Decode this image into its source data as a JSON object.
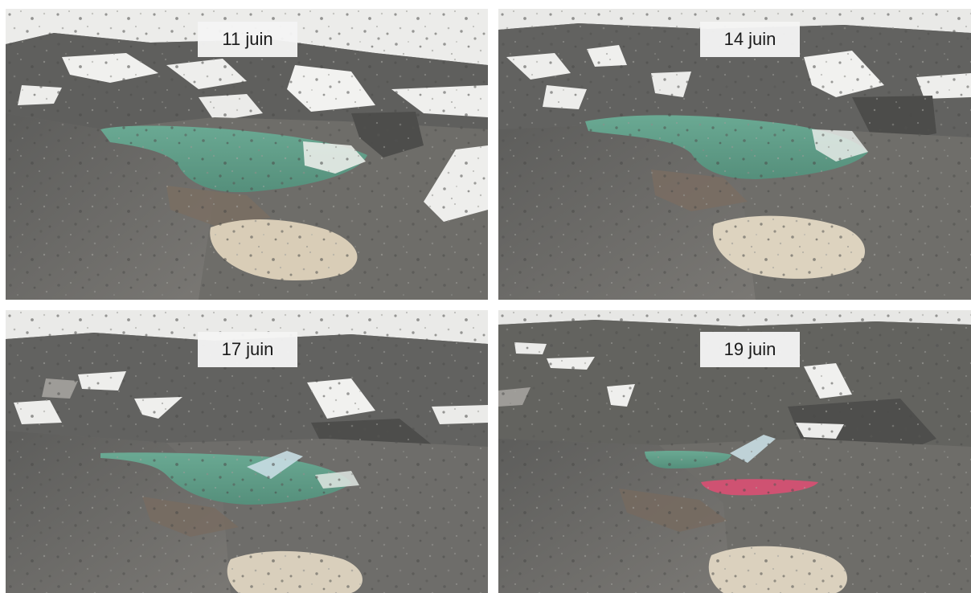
{
  "panels": [
    {
      "label": "11 juin"
    },
    {
      "label": "14 juin"
    },
    {
      "label": "17 juin"
    },
    {
      "label": "19 juin"
    }
  ],
  "colors": {
    "lake": "#62a08a",
    "meltwater_highlight": "#cf5272",
    "snow": "#f1f1ef",
    "debris": "#6f6f6c",
    "dirty_snow": "#d9cdb7"
  }
}
